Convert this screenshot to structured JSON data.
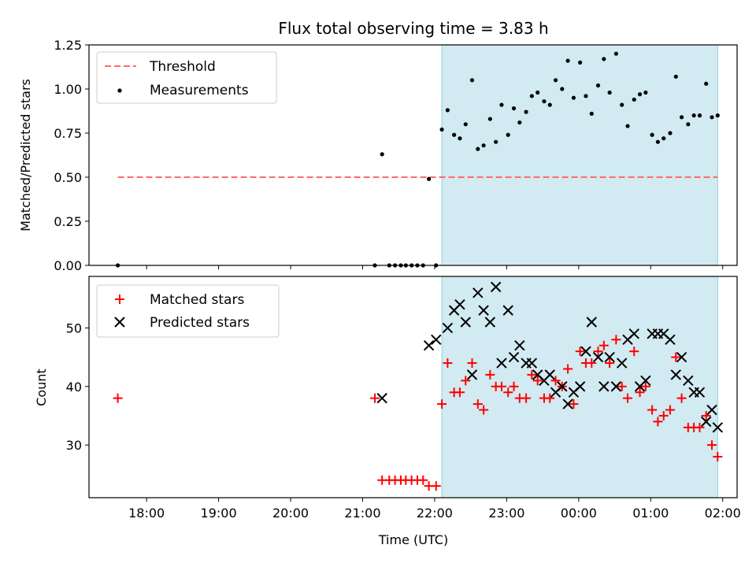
{
  "chart_data": [
    {
      "type": "scatter",
      "title": "Flux total observing time = 3.83 h",
      "xlabel": "",
      "ylabel": "Matched/Predicted stars",
      "x_unit": "hours (UTC, relative to 18:00 axis; 24 = 00:00 next day)",
      "xlim": [
        17.2,
        26.2
      ],
      "ylim": [
        0.0,
        1.25
      ],
      "yticks": [
        "0.00",
        "0.25",
        "0.50",
        "0.75",
        "1.00",
        "1.25"
      ],
      "grid": false,
      "legend_position": "upper-left",
      "shaded_region": {
        "x_start": 22.1,
        "x_end": 25.93,
        "color": "#add8e6"
      },
      "series": [
        {
          "name": "Threshold",
          "kind": "line",
          "style": "dashed",
          "color": "#ff6b6b",
          "x": [
            17.6,
            25.93
          ],
          "y": [
            0.5,
            0.5
          ]
        },
        {
          "name": "Measurements",
          "kind": "scatter",
          "color": "#000000",
          "x": [
            17.6,
            21.17,
            21.27,
            21.37,
            21.45,
            21.53,
            21.6,
            21.68,
            21.76,
            21.84,
            21.92,
            22.02,
            22.1,
            22.18,
            22.27,
            22.35,
            22.43,
            22.52,
            22.6,
            22.68,
            22.77,
            22.85,
            22.93,
            23.02,
            23.1,
            23.18,
            23.27,
            23.35,
            23.43,
            23.52,
            23.6,
            23.68,
            23.77,
            23.85,
            23.93,
            24.02,
            24.1,
            24.18,
            24.27,
            24.35,
            24.43,
            24.52,
            24.6,
            24.68,
            24.77,
            24.85,
            24.93,
            25.02,
            25.1,
            25.18,
            25.27,
            25.35,
            25.43,
            25.52,
            25.6,
            25.68,
            25.77,
            25.85,
            25.93
          ],
          "y": [
            0.0,
            0.0,
            0.63,
            0.0,
            0.0,
            0.0,
            0.0,
            0.0,
            0.0,
            0.0,
            0.49,
            0.0,
            0.77,
            0.88,
            0.74,
            0.72,
            0.8,
            1.05,
            0.66,
            0.68,
            0.83,
            0.7,
            0.91,
            0.74,
            0.89,
            0.81,
            0.87,
            0.96,
            0.98,
            0.93,
            0.91,
            1.05,
            1.0,
            1.16,
            0.95,
            1.15,
            0.96,
            0.86,
            1.02,
            1.17,
            0.98,
            1.2,
            0.91,
            0.79,
            0.94,
            0.97,
            0.98,
            0.74,
            0.7,
            0.72,
            0.75,
            1.07,
            0.84,
            0.8,
            0.85,
            0.85,
            1.03,
            0.84,
            0.85
          ]
        }
      ]
    },
    {
      "type": "scatter",
      "title": "",
      "xlabel": "Time (UTC)",
      "ylabel": "Count",
      "x_unit": "hours (UTC, relative to 18:00 axis; 24 = 00:00 next day)",
      "xlim": [
        17.2,
        26.2
      ],
      "ylim": [
        21,
        58.8
      ],
      "yticks": [
        "30",
        "40",
        "50"
      ],
      "xticks": [
        "18:00",
        "19:00",
        "20:00",
        "21:00",
        "22:00",
        "23:00",
        "00:00",
        "01:00",
        "02:00"
      ],
      "grid": false,
      "legend_position": "upper-left",
      "shaded_region": {
        "x_start": 22.1,
        "x_end": 25.93,
        "color": "#add8e6"
      },
      "series": [
        {
          "name": "Matched stars",
          "kind": "scatter",
          "marker": "plus",
          "color": "#ff0000",
          "x": [
            17.6,
            21.17,
            21.27,
            21.37,
            21.45,
            21.53,
            21.6,
            21.68,
            21.76,
            21.84,
            21.92,
            22.02,
            22.1,
            22.18,
            22.27,
            22.35,
            22.43,
            22.52,
            22.6,
            22.68,
            22.77,
            22.85,
            22.93,
            23.02,
            23.1,
            23.18,
            23.27,
            23.35,
            23.43,
            23.52,
            23.6,
            23.68,
            23.77,
            23.85,
            23.93,
            24.02,
            24.1,
            24.18,
            24.27,
            24.35,
            24.43,
            24.52,
            24.6,
            24.68,
            24.77,
            24.85,
            24.93,
            25.02,
            25.1,
            25.18,
            25.27,
            25.35,
            25.43,
            25.52,
            25.6,
            25.68,
            25.77,
            25.85,
            25.93
          ],
          "y": [
            38,
            38,
            24,
            24,
            24,
            24,
            24,
            24,
            24,
            24,
            23,
            23,
            37,
            44,
            39,
            39,
            41,
            44,
            37,
            36,
            42,
            40,
            40,
            39,
            40,
            38,
            38,
            42,
            41,
            38,
            38,
            41,
            40,
            43,
            37,
            46,
            44,
            44,
            46,
            47,
            44,
            48,
            40,
            38,
            46,
            39,
            40,
            36,
            34,
            35,
            36,
            45,
            38,
            33,
            33,
            33,
            35,
            30,
            28
          ]
        },
        {
          "name": "Predicted stars",
          "kind": "scatter",
          "marker": "x",
          "color": "#000000",
          "x": [
            21.27,
            21.92,
            22.02,
            22.18,
            22.27,
            22.35,
            22.43,
            22.52,
            22.6,
            22.68,
            22.77,
            22.85,
            22.93,
            23.02,
            23.1,
            23.18,
            23.27,
            23.35,
            23.43,
            23.52,
            23.6,
            23.68,
            23.77,
            23.85,
            23.93,
            24.02,
            24.1,
            24.18,
            24.27,
            24.35,
            24.43,
            24.52,
            24.6,
            24.68,
            24.77,
            24.85,
            24.93,
            25.02,
            25.1,
            25.18,
            25.27,
            25.35,
            25.43,
            25.52,
            25.6,
            25.68,
            25.77,
            25.85,
            25.93
          ],
          "y": [
            38,
            47,
            48,
            50,
            53,
            54,
            51,
            42,
            56,
            53,
            51,
            57,
            44,
            53,
            45,
            47,
            44,
            44,
            42,
            41,
            42,
            39,
            40,
            37,
            39,
            40,
            46,
            51,
            45,
            40,
            45,
            40,
            44,
            48,
            49,
            40,
            41,
            49,
            49,
            49,
            48,
            42,
            45,
            41,
            39,
            39,
            34,
            36,
            33
          ]
        }
      ]
    }
  ]
}
